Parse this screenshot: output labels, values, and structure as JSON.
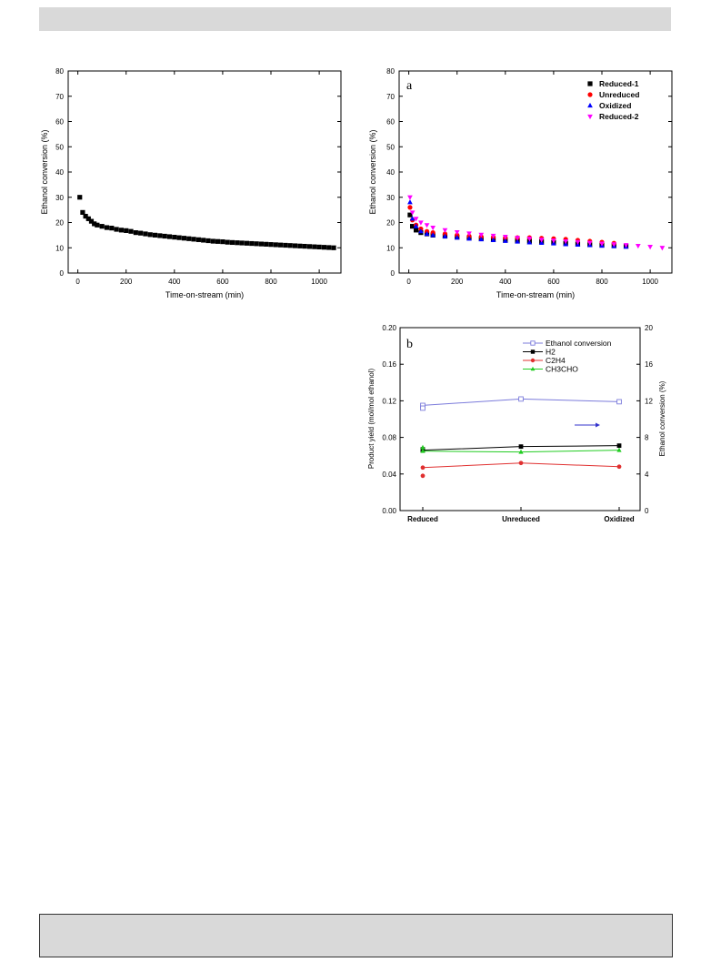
{
  "chart_data": [
    {
      "id": "chart1",
      "type": "scatter",
      "panel_label": "",
      "xlabel": "Time-on-stream (min)",
      "ylabel": "Ethanol conversion (%)",
      "xlim": [
        -40,
        1090
      ],
      "ylim": [
        0,
        80
      ],
      "xticks": [
        0,
        200,
        400,
        600,
        800,
        1000
      ],
      "yticks": [
        0,
        10,
        20,
        30,
        40,
        50,
        60,
        70,
        80
      ],
      "colors": {
        "series": "#000000"
      },
      "series": [
        {
          "name": "",
          "marker": "square",
          "color": "#000000",
          "x": [
            8,
            20,
            32,
            44,
            56,
            68,
            80,
            100,
            120,
            140,
            160,
            180,
            200,
            220,
            240,
            260,
            280,
            300,
            320,
            340,
            360,
            380,
            400,
            420,
            440,
            460,
            480,
            500,
            520,
            540,
            560,
            580,
            600,
            620,
            640,
            660,
            680,
            700,
            720,
            740,
            760,
            780,
            800,
            820,
            840,
            860,
            880,
            900,
            920,
            940,
            960,
            980,
            1000,
            1020,
            1040,
            1060
          ],
          "y": [
            30.0,
            24.0,
            22.5,
            21.5,
            20.5,
            19.5,
            19.0,
            18.5,
            18.0,
            17.8,
            17.3,
            17.0,
            16.8,
            16.5,
            16.0,
            15.8,
            15.5,
            15.2,
            15.0,
            14.8,
            14.6,
            14.4,
            14.2,
            14.0,
            13.8,
            13.6,
            13.4,
            13.2,
            13.0,
            12.8,
            12.6,
            12.5,
            12.4,
            12.2,
            12.1,
            12.0,
            11.9,
            11.8,
            11.7,
            11.6,
            11.5,
            11.4,
            11.3,
            11.2,
            11.1,
            11.0,
            10.9,
            10.8,
            10.7,
            10.6,
            10.5,
            10.4,
            10.3,
            10.2,
            10.1,
            10.0
          ]
        }
      ]
    },
    {
      "id": "chart2",
      "type": "scatter",
      "panel_label": "a",
      "xlabel": "Time-on-stream (min)",
      "ylabel": "Ethanol conversion (%)",
      "xlim": [
        -40,
        1090
      ],
      "ylim": [
        0,
        80
      ],
      "xticks": [
        0,
        200,
        400,
        600,
        800,
        1000
      ],
      "yticks": [
        0,
        10,
        20,
        30,
        40,
        50,
        60,
        70,
        80
      ],
      "legend_position": "top-right",
      "series": [
        {
          "name": "Reduced-1",
          "marker": "square",
          "color": "#000000",
          "x": [
            5,
            15,
            30,
            50,
            75,
            100,
            150,
            200,
            250,
            300,
            350,
            400,
            450,
            500,
            550,
            600,
            650,
            700,
            750,
            800,
            850,
            900
          ],
          "y": [
            23.0,
            18.5,
            17.0,
            16.0,
            15.5,
            15.0,
            14.6,
            14.2,
            13.9,
            13.6,
            13.3,
            13.0,
            12.8,
            12.6,
            12.4,
            12.1,
            11.8,
            11.5,
            11.2,
            11.0,
            10.8,
            10.6
          ]
        },
        {
          "name": "Unreduced",
          "marker": "circle",
          "color": "#ff0000",
          "x": [
            5,
            15,
            30,
            50,
            75,
            100,
            150,
            200,
            250,
            300,
            350,
            400,
            450,
            500,
            550,
            600,
            650,
            700,
            750,
            800,
            850
          ],
          "y": [
            26.0,
            21.0,
            19.0,
            17.5,
            16.5,
            16.0,
            15.5,
            15.0,
            14.6,
            14.4,
            14.2,
            14.0,
            14.0,
            14.0,
            13.8,
            13.6,
            13.4,
            13.0,
            12.6,
            12.2,
            11.8
          ]
        },
        {
          "name": "Oxidized",
          "marker": "triangle-up",
          "color": "#0000ff",
          "x": [
            5,
            15,
            30,
            50,
            75,
            100,
            150,
            200,
            250,
            300,
            350,
            400,
            450,
            500,
            550,
            600,
            650,
            700,
            750,
            800,
            850,
            900
          ],
          "y": [
            28.0,
            21.5,
            18.5,
            16.5,
            15.5,
            15.0,
            14.5,
            14.0,
            13.6,
            13.3,
            13.0,
            12.7,
            12.4,
            12.1,
            11.9,
            11.7,
            11.4,
            11.2,
            11.0,
            10.8,
            10.6,
            10.4
          ]
        },
        {
          "name": "Reduced-2",
          "marker": "triangle-down",
          "color": "#ff00ff",
          "x": [
            5,
            15,
            30,
            50,
            75,
            100,
            150,
            200,
            250,
            300,
            350,
            400,
            450,
            500,
            550,
            600,
            650,
            700,
            750,
            800,
            850,
            900,
            950,
            1000,
            1050
          ],
          "y": [
            30.0,
            24.0,
            21.5,
            20.0,
            19.0,
            18.0,
            17.0,
            16.2,
            15.7,
            15.2,
            14.8,
            14.4,
            14.0,
            13.6,
            13.2,
            12.9,
            12.6,
            12.3,
            12.0,
            11.7,
            11.4,
            11.1,
            10.8,
            10.4,
            10.0
          ]
        }
      ]
    },
    {
      "id": "chart3",
      "type": "line",
      "panel_label": "b",
      "categories": [
        "Reduced",
        "Unreduced",
        "Oxidized"
      ],
      "ylabel": "Product yield (mol/mol ethanol)",
      "y2label": "Ethanol conversion (%)",
      "ylim": [
        0,
        0.2
      ],
      "y2lim": [
        0,
        20
      ],
      "yticks": [
        "0.00",
        "0.04",
        "0.08",
        "0.12",
        "0.16",
        "0.20"
      ],
      "y2ticks": [
        "0",
        "4",
        "8",
        "12",
        "16",
        "20"
      ],
      "legend_position": "top-right",
      "series": [
        {
          "name": "Ethanol conversion",
          "marker": "open-square",
          "color": "#7b7bdb",
          "axis": "right",
          "values": [
            11.5,
            12.2,
            11.9
          ],
          "extra_points": [
            {
              "category": 0,
              "value": 11.2
            }
          ]
        },
        {
          "name": "H2",
          "marker": "square",
          "color": "#000000",
          "axis": "left",
          "values": [
            0.066,
            0.07,
            0.071
          ],
          "extra_points": [
            {
              "category": 0,
              "value": 0.067
            }
          ]
        },
        {
          "name": "C2H4",
          "marker": "circle",
          "color": "#e03030",
          "axis": "left",
          "values": [
            0.047,
            0.052,
            0.048
          ],
          "extra_points": [
            {
              "category": 0,
              "value": 0.038
            }
          ]
        },
        {
          "name": "CH3CHO",
          "marker": "triangle-up",
          "color": "#22cc22",
          "axis": "left",
          "values": [
            0.065,
            0.064,
            0.066
          ],
          "extra_points": [
            {
              "category": 0,
              "value": 0.069
            }
          ]
        }
      ]
    }
  ]
}
